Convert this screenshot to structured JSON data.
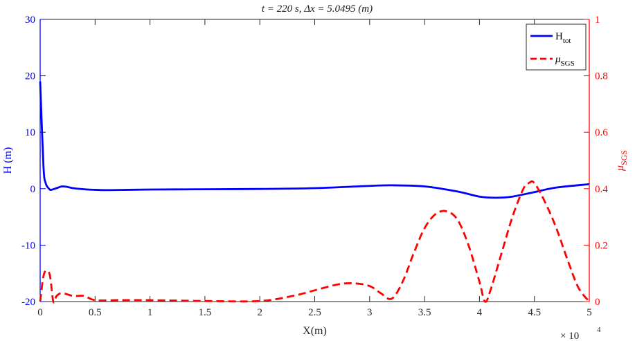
{
  "chart_data": {
    "type": "line",
    "title": "t = 220 s,  Δx = 5.0495 (m)",
    "xlabel": "X(m)",
    "x_exponent_label": "× 10",
    "x_exponent": "4",
    "xlim": [
      0,
      5
    ],
    "xticks": [
      "0",
      "0.5",
      "1",
      "1.5",
      "2",
      "2.5",
      "3",
      "3.5",
      "4",
      "4.5",
      "5"
    ],
    "left_axis": {
      "label": "H (m)",
      "color": "#0000ff",
      "ylim": [
        -20,
        30
      ],
      "ticks": [
        "-20",
        "-10",
        "0",
        "10",
        "20",
        "30"
      ]
    },
    "right_axis": {
      "label_main": "μ",
      "label_sub": "SGS",
      "color": "#ff0000",
      "ylim": [
        0,
        1
      ],
      "ticks": [
        "0",
        "0.2",
        "0.4",
        "0.6",
        "0.8",
        "1"
      ]
    },
    "legend": {
      "position": "top-right"
    },
    "series": [
      {
        "name": "H",
        "name_sub": "tot",
        "axis": "left",
        "color": "#0000ff",
        "style": "solid",
        "x": [
          0,
          0.03,
          0.05,
          0.08,
          0.1,
          0.15,
          0.2,
          0.25,
          0.3,
          0.4,
          0.5,
          0.6,
          0.8,
          1.0,
          1.5,
          2.0,
          2.5,
          3.0,
          3.2,
          3.5,
          3.8,
          4.0,
          4.15,
          4.3,
          4.5,
          4.7,
          5.0
        ],
        "values": [
          19,
          4,
          1,
          0,
          -0.2,
          0.1,
          0.4,
          0.3,
          0.1,
          -0.1,
          -0.2,
          -0.25,
          -0.2,
          -0.15,
          -0.1,
          -0.05,
          0.1,
          0.5,
          0.6,
          0.4,
          -0.5,
          -1.4,
          -1.6,
          -1.4,
          -0.6,
          0.2,
          0.8
        ]
      },
      {
        "name": "μ",
        "name_sub": "SGS",
        "axis": "right",
        "color": "#ff0000",
        "style": "dashed",
        "x": [
          0,
          0.03,
          0.06,
          0.09,
          0.12,
          0.15,
          0.2,
          0.3,
          0.4,
          0.5,
          0.7,
          1.0,
          1.5,
          2.0,
          2.3,
          2.5,
          2.7,
          2.85,
          3.0,
          3.1,
          3.2,
          3.3,
          3.4,
          3.5,
          3.6,
          3.7,
          3.8,
          3.9,
          4.0,
          4.05,
          4.1,
          4.2,
          4.3,
          4.4,
          4.45,
          4.5,
          4.6,
          4.7,
          4.8,
          4.9,
          5.0
        ],
        "values": [
          0.0,
          0.09,
          0.11,
          0.09,
          0.0,
          0.02,
          0.03,
          0.02,
          0.02,
          0.005,
          0.005,
          0.005,
          0.002,
          0.002,
          0.02,
          0.04,
          0.06,
          0.065,
          0.055,
          0.03,
          0.01,
          0.07,
          0.17,
          0.26,
          0.31,
          0.32,
          0.29,
          0.2,
          0.07,
          0.0,
          0.04,
          0.17,
          0.3,
          0.4,
          0.42,
          0.42,
          0.35,
          0.26,
          0.15,
          0.05,
          0.0
        ]
      }
    ]
  }
}
